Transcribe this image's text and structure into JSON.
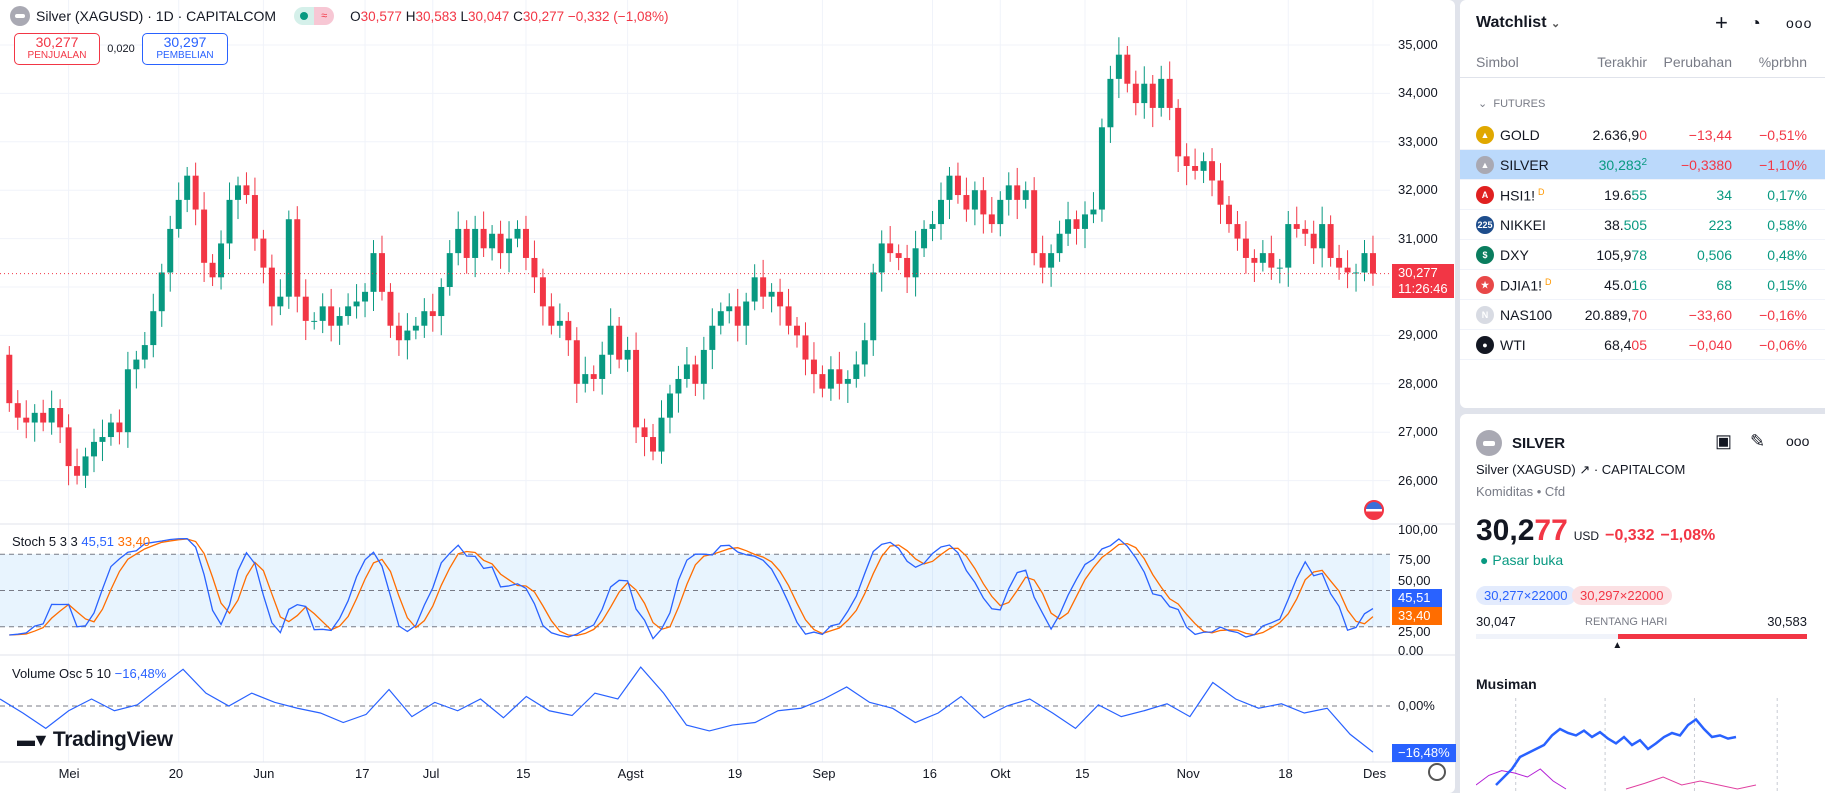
{
  "header": {
    "title": "Silver (XAGUSD) · 1D · CAPITALCOM",
    "ohlc": {
      "o_label": "O",
      "o": "30,577",
      "h_label": "H",
      "h": "30,583",
      "l_label": "L",
      "l": "30,047",
      "c_label": "C",
      "c": "30,277",
      "change": "−0,332 (−1,08%)"
    },
    "pill_icon": "≈"
  },
  "trade": {
    "sell_price": "30,277",
    "sell_label": "PENJUALAN",
    "spread": "0,020",
    "buy_price": "30,297",
    "buy_label": "PEMBELIAN"
  },
  "colors": {
    "up": "#089981",
    "down": "#f23645",
    "k": "#2962ff",
    "d": "#ff6d00"
  },
  "price_axis": {
    "ticks": [
      "35,000",
      "34,000",
      "33,000",
      "32,000",
      "31,000",
      "29,000",
      "28,000",
      "27,000",
      "26,000"
    ],
    "tick_values": [
      35,
      34,
      33,
      32,
      31,
      29,
      28,
      27,
      26
    ],
    "last_price": "30,277",
    "last_value": 30.277,
    "countdown": "11:26:46"
  },
  "stoch": {
    "label": "Stoch",
    "params": "5 3 3",
    "k": "45,51",
    "d": "33,40",
    "ticks": [
      "100,00",
      "75,00",
      "50,00",
      "25,00",
      "0.00"
    ],
    "tick_values": [
      100,
      75,
      50,
      25,
      0
    ],
    "band": [
      20,
      80
    ]
  },
  "vol_osc": {
    "label": "Volume Osc",
    "params": "5 10",
    "value": "−16,48%",
    "zero_label": "0,00%",
    "values": [
      2.5,
      -2.5,
      -8,
      -1.7,
      2.5,
      -1.7,
      0.4,
      6.8,
      13.1,
      4.6,
      0,
      4.6,
      1.3,
      -0.8,
      -2.5,
      -5.9,
      -3,
      5.9,
      -3.8,
      1.3,
      -1.7,
      2.5,
      -4.2,
      3.4,
      -1.7,
      -3.4,
      4.6,
      2.5,
      13.9,
      4.6,
      -6.8,
      -8.9,
      -6.8,
      -5.9,
      -1.7,
      -0.8,
      2.5,
      6.8,
      1.3,
      -0.8,
      -5.9,
      -2.5,
      3.4,
      -4.2,
      0,
      2.5,
      -2.5,
      -8,
      0.4,
      -3.8,
      -1.7,
      0.8,
      -3.8,
      8.4,
      2.5,
      -0.8,
      0.8,
      -2.5,
      -0.8,
      -10.1,
      -16.48
    ]
  },
  "time_axis": [
    {
      "label": "Mei",
      "i": 7
    },
    {
      "label": "20",
      "i": 20
    },
    {
      "label": "Jun",
      "i": 30
    },
    {
      "label": "17",
      "i": 42
    },
    {
      "label": "Jul",
      "i": 50
    },
    {
      "label": "15",
      "i": 61
    },
    {
      "label": "Agst",
      "i": 73
    },
    {
      "label": "19",
      "i": 86
    },
    {
      "label": "Sep",
      "i": 96
    },
    {
      "label": "16",
      "i": 109
    },
    {
      "label": "Okt",
      "i": 117
    },
    {
      "label": "15",
      "i": 127
    },
    {
      "label": "Nov",
      "i": 139
    },
    {
      "label": "18",
      "i": 151
    },
    {
      "label": "Des",
      "i": 161
    }
  ],
  "brand": "TradingView",
  "chart_data": {
    "type": "candlestick",
    "symbol": "XAGUSD",
    "first_open": 28.6,
    "closes": [
      27.6,
      27.3,
      27.2,
      27.4,
      27.2,
      27.5,
      27.1,
      26.3,
      26.1,
      26.5,
      26.8,
      26.9,
      27.2,
      27.0,
      28.3,
      28.5,
      28.8,
      29.5,
      30.3,
      31.2,
      31.8,
      32.3,
      31.6,
      30.5,
      30.2,
      30.9,
      31.8,
      32.1,
      31.9,
      31.0,
      30.4,
      29.6,
      29.8,
      31.4,
      29.8,
      29.3,
      29.3,
      29.6,
      29.2,
      29.4,
      29.6,
      29.7,
      29.9,
      30.7,
      29.9,
      29.2,
      28.9,
      29.1,
      29.2,
      29.5,
      29.4,
      30.0,
      30.7,
      31.2,
      30.6,
      31.2,
      30.8,
      31.1,
      30.7,
      31.0,
      31.2,
      30.6,
      30.2,
      29.6,
      29.2,
      29.3,
      28.9,
      28.0,
      28.2,
      28.1,
      28.6,
      29.2,
      28.5,
      28.7,
      27.1,
      26.9,
      26.6,
      27.3,
      27.8,
      28.1,
      28.4,
      28.0,
      28.7,
      29.2,
      29.5,
      29.6,
      29.2,
      29.7,
      30.2,
      29.8,
      29.9,
      29.6,
      29.2,
      29.0,
      28.5,
      28.2,
      27.9,
      28.3,
      28.0,
      28.1,
      28.4,
      28.9,
      30.3,
      30.9,
      30.7,
      30.6,
      30.2,
      30.8,
      31.2,
      31.3,
      31.8,
      32.3,
      31.9,
      31.6,
      32.0,
      31.5,
      31.3,
      31.8,
      32.1,
      31.8,
      32.0,
      30.7,
      30.4,
      30.7,
      31.1,
      31.4,
      31.2,
      31.5,
      31.6,
      33.3,
      34.3,
      34.8,
      34.2,
      33.8,
      34.2,
      33.7,
      34.3,
      33.7,
      32.7,
      32.5,
      32.4,
      32.6,
      32.2,
      31.7,
      31.3,
      31.0,
      30.6,
      30.5,
      30.7,
      30.4,
      30.4,
      31.3,
      31.2,
      31.1,
      30.8,
      31.3,
      30.6,
      30.4,
      30.3,
      30.3,
      30.7,
      30.277
    ],
    "wick": 0.18
  },
  "watchlist": {
    "title": "Watchlist",
    "columns": [
      "Simbol",
      "Terakhir",
      "Perubahan",
      "%prbhn"
    ],
    "group": "FUTURES",
    "rows": [
      {
        "symbol": "GOLD",
        "badge": "",
        "last_a": "2.636,9",
        "last_b": "0",
        "change": "−13,44",
        "pct": "−0,51%",
        "dir": "dn",
        "icon_color": "#e0a800",
        "icon_text": "▲"
      },
      {
        "symbol": "SILVER",
        "badge": "",
        "last_a": "30,283",
        "last_b": "2",
        "change": "−0,3380",
        "pct": "−1,10%",
        "dir": "dn",
        "icon_color": "#a9a9b3",
        "icon_text": "▲",
        "selected": true
      },
      {
        "symbol": "HSI1!",
        "badge": "D",
        "last_a": "19.6",
        "last_b": "55",
        "change": "34",
        "pct": "0,17%",
        "dir": "up",
        "icon_color": "#e02020",
        "icon_text": "A"
      },
      {
        "symbol": "NIKKEI",
        "badge": "",
        "last_a": "38.",
        "last_b": "505",
        "change": "223",
        "pct": "0,58%",
        "dir": "up",
        "icon_color": "#1e4d8c",
        "icon_text": "225"
      },
      {
        "symbol": "DXY",
        "badge": "",
        "last_a": "105,9",
        "last_b": "78",
        "change": "0,506",
        "pct": "0,48%",
        "dir": "up",
        "icon_color": "#0a7d5e",
        "icon_text": "$"
      },
      {
        "symbol": "DJIA1!",
        "badge": "D",
        "last_a": "45.0",
        "last_b": "16",
        "change": "68",
        "pct": "0,15%",
        "dir": "up",
        "icon_color": "#e84848",
        "icon_text": "★"
      },
      {
        "symbol": "NAS100",
        "badge": "",
        "last_a": "20.889,",
        "last_b": "70",
        "change": "−33,60",
        "pct": "−0,16%",
        "dir": "dn",
        "icon_color": "#d8dbe3",
        "icon_text": "N"
      },
      {
        "symbol": "WTI",
        "badge": "",
        "last_a": "68,4",
        "last_b": "05",
        "change": "−0,040",
        "pct": "−0,06%",
        "dir": "dn",
        "icon_color": "#131722",
        "icon_text": "●"
      }
    ]
  },
  "details": {
    "symbol": "SILVER",
    "full_name": "Silver (XAGUSD)",
    "exchange": "CAPITALCOM",
    "type": "Komiditas",
    "sub_type": "Cfd",
    "price_a": "30,2",
    "price_b": "77",
    "currency": "USD",
    "change": "−0,332",
    "change_pct": "−1,08%",
    "status": "Pasar buka",
    "bid_chip": "30,277×22000",
    "ask_chip": "30,297×22000",
    "range_low": "30,047",
    "range_high": "30,583",
    "range_label": "RENTANG HARI",
    "range_position": 0.43,
    "seasonal_title": "Musiman",
    "seasonal": {
      "blue": [
        0.1,
        0.2,
        0.3,
        0.45,
        0.5,
        0.55,
        0.6,
        0.72,
        0.8,
        0.75,
        0.72,
        0.78,
        0.7,
        0.76,
        0.68,
        0.62,
        0.7,
        0.6,
        0.66,
        0.55,
        0.62,
        0.7,
        0.75,
        0.72,
        0.85,
        0.92,
        0.8,
        0.7,
        0.72,
        0.68,
        0.7
      ],
      "purple": [
        0.1,
        0.22,
        0.28,
        0.25,
        0.2,
        0.3,
        0.15,
        0.05
      ],
      "pink": [
        0.05,
        0.12,
        0.2,
        0.1,
        0.15,
        0.1,
        0.05,
        0.1
      ]
    }
  }
}
